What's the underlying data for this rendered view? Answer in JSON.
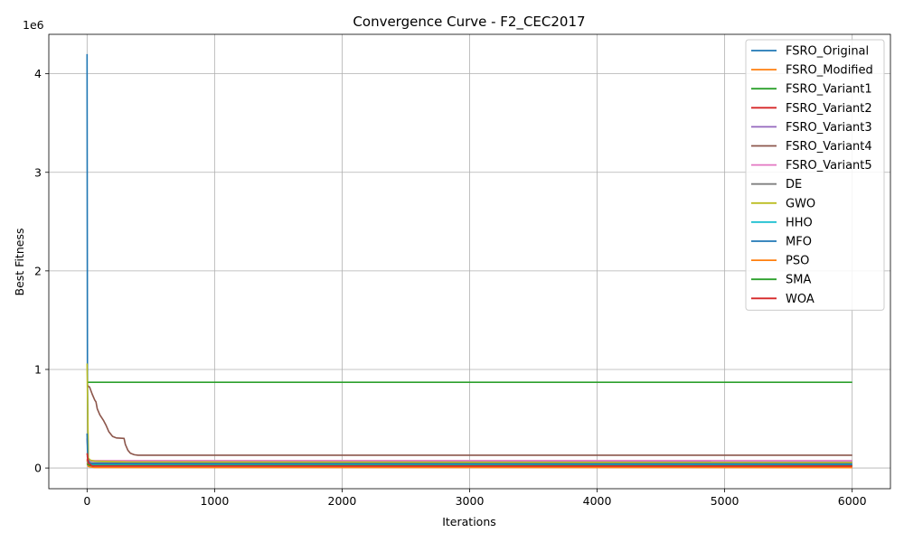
{
  "chart_data": {
    "type": "line",
    "title": "Convergence Curve - F2_CEC2017",
    "xlabel": "Iterations",
    "ylabel": "Best Fitness",
    "offset_label": "1e6",
    "xlim": [
      -300,
      6300
    ],
    "ylim": [
      -210000,
      4400000
    ],
    "xticks": [
      0,
      1000,
      2000,
      3000,
      4000,
      5000,
      6000
    ],
    "xtick_labels": [
      "0",
      "1000",
      "2000",
      "3000",
      "4000",
      "5000",
      "6000"
    ],
    "yticks": [
      0,
      1000000,
      2000000,
      3000000,
      4000000
    ],
    "ytick_labels": [
      "0",
      "1",
      "2",
      "3",
      "4"
    ],
    "grid": true,
    "legend_position": "top-right",
    "series": [
      {
        "name": "FSRO_Original",
        "color": "#1f77b4",
        "points": [
          [
            0,
            4200000
          ],
          [
            3,
            1000000
          ],
          [
            8,
            80000
          ],
          [
            30,
            30000
          ],
          [
            6000,
            28000
          ]
        ]
      },
      {
        "name": "FSRO_Modified",
        "color": "#ff7f0e",
        "points": [
          [
            0,
            80000
          ],
          [
            10,
            15000
          ],
          [
            60,
            5000
          ],
          [
            6000,
            4000
          ]
        ]
      },
      {
        "name": "FSRO_Variant1",
        "color": "#2ca02c",
        "points": [
          [
            0,
            870000
          ],
          [
            6000,
            870000
          ]
        ]
      },
      {
        "name": "FSRO_Variant2",
        "color": "#d62728",
        "points": [
          [
            0,
            90000
          ],
          [
            20,
            40000
          ],
          [
            80,
            35000
          ],
          [
            6000,
            30000
          ]
        ]
      },
      {
        "name": "FSRO_Variant3",
        "color": "#9467bd",
        "points": [
          [
            0,
            300000
          ],
          [
            10,
            90000
          ],
          [
            30,
            70000
          ],
          [
            400,
            68000
          ],
          [
            4850,
            68000
          ],
          [
            4900,
            60000
          ],
          [
            6000,
            60000
          ]
        ]
      },
      {
        "name": "FSRO_Variant4",
        "color": "#8c564b",
        "points": [
          [
            0,
            840000
          ],
          [
            20,
            820000
          ],
          [
            40,
            750000
          ],
          [
            60,
            690000
          ],
          [
            70,
            670000
          ],
          [
            80,
            600000
          ],
          [
            100,
            540000
          ],
          [
            130,
            480000
          ],
          [
            150,
            430000
          ],
          [
            170,
            370000
          ],
          [
            200,
            320000
          ],
          [
            230,
            305000
          ],
          [
            290,
            300000
          ],
          [
            300,
            240000
          ],
          [
            320,
            180000
          ],
          [
            340,
            150000
          ],
          [
            370,
            135000
          ],
          [
            400,
            130000
          ],
          [
            6000,
            130000
          ]
        ]
      },
      {
        "name": "FSRO_Variant5",
        "color": "#e377c2",
        "points": [
          [
            0,
            120000
          ],
          [
            15,
            80000
          ],
          [
            40,
            75000
          ],
          [
            6000,
            75000
          ]
        ]
      },
      {
        "name": "DE",
        "color": "#7f7f7f",
        "points": [
          [
            0,
            70000
          ],
          [
            30,
            52000
          ],
          [
            6000,
            50000
          ]
        ]
      },
      {
        "name": "GWO",
        "color": "#bcbd22",
        "points": [
          [
            0,
            1060000
          ],
          [
            4,
            700000
          ],
          [
            10,
            100000
          ],
          [
            25,
            80000
          ],
          [
            60,
            70000
          ],
          [
            300,
            62000
          ],
          [
            6000,
            55000
          ]
        ]
      },
      {
        "name": "HHO",
        "color": "#17becf",
        "points": [
          [
            0,
            60000
          ],
          [
            20,
            35000
          ],
          [
            6000,
            32000
          ]
        ]
      },
      {
        "name": "MFO",
        "color": "#1f77b4",
        "points": [
          [
            0,
            350000
          ],
          [
            5,
            100000
          ],
          [
            20,
            45000
          ],
          [
            6000,
            40000
          ]
        ]
      },
      {
        "name": "PSO",
        "color": "#ff7f0e",
        "points": [
          [
            0,
            50000
          ],
          [
            10,
            20000
          ],
          [
            6000,
            15000
          ]
        ]
      },
      {
        "name": "SMA",
        "color": "#2ca02c",
        "points": [
          [
            0,
            40000
          ],
          [
            20,
            25000
          ],
          [
            6000,
            22000
          ]
        ]
      },
      {
        "name": "WOA",
        "color": "#d62728",
        "points": [
          [
            0,
            150000
          ],
          [
            10,
            50000
          ],
          [
            40,
            20000
          ],
          [
            6000,
            20000
          ]
        ]
      }
    ]
  }
}
